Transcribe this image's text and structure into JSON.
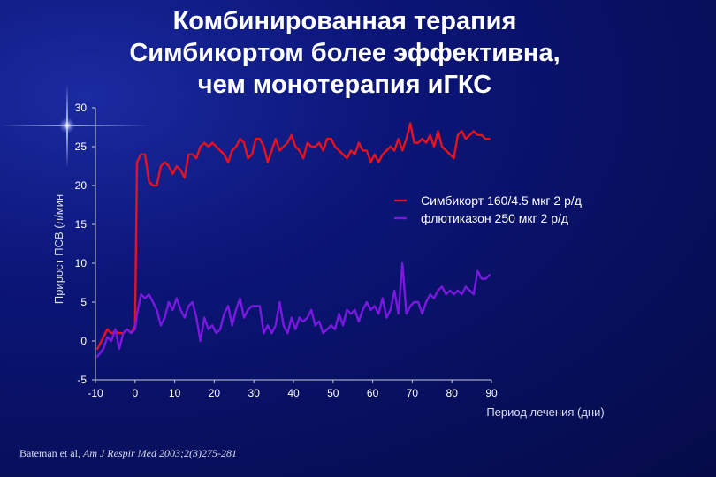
{
  "title_lines": [
    "Комбинированная терапия",
    "Симбикортом более эффективна,",
    "чем монотерапия иГКС"
  ],
  "citation": {
    "authors": "Bateman et al,",
    "journal": "Am J Respir Med 2003;2(3)275-281"
  },
  "colors": {
    "background": "#0a1470",
    "text": "#ffffff",
    "axis": "#c8ccdc"
  },
  "chart_data": {
    "type": "line",
    "title": "",
    "xlabel": "Период лечения (дни)",
    "ylabel": "Прирост ПСВ (л/мин",
    "xlim": [
      -10,
      90
    ],
    "ylim": [
      -5,
      30
    ],
    "xticks": [
      -10,
      0,
      10,
      20,
      30,
      40,
      50,
      60,
      70,
      80,
      90
    ],
    "yticks": [
      30,
      25,
      20,
      15,
      10,
      5,
      0,
      -5
    ],
    "grid": false,
    "legend_position": "right",
    "series": [
      {
        "name": "Симбикорт 160/4.5 мкг 2 р/д",
        "color": "#e8121e",
        "x": [
          -9.5,
          -8,
          -7,
          -6,
          -5,
          -4,
          -3,
          -2,
          -1,
          0,
          0.5,
          1.5,
          2.5,
          3.5,
          4.5,
          5.5,
          6.5,
          7.5,
          8.5,
          9.5,
          10.5,
          11.5,
          12.5,
          13.5,
          14.5,
          15.5,
          16.5,
          17.5,
          18.5,
          19.5,
          20.5,
          21.5,
          22.5,
          23.5,
          24.5,
          25.5,
          26.5,
          27.5,
          28.5,
          29.5,
          30.5,
          31.5,
          32.5,
          33.5,
          34.5,
          35.5,
          36.5,
          37.5,
          38.5,
          39.5,
          40.5,
          41.5,
          42.5,
          43.5,
          44.5,
          45.5,
          46.5,
          47.5,
          48.5,
          49.5,
          50.5,
          51.5,
          52.5,
          53.5,
          54.5,
          55.5,
          56.5,
          57.5,
          58.5,
          59.5,
          60.5,
          61.5,
          62.5,
          63.5,
          64.5,
          65.5,
          66.5,
          67.5,
          68.5,
          69.5,
          70.5,
          71.5,
          72.5,
          73.5,
          74.5,
          75.5,
          76.5,
          77.5,
          78.5,
          79.5,
          80.5,
          81.5,
          82.5,
          83.5,
          84.5,
          85.5,
          86.5,
          87.5,
          88.5,
          89.5
        ],
        "values": [
          -1,
          0.5,
          1.5,
          1,
          1.2,
          1,
          1,
          1.5,
          1,
          2,
          23,
          24,
          24,
          20.5,
          20,
          20,
          22.5,
          23,
          22.5,
          21.5,
          22.5,
          22,
          21,
          24,
          24,
          23.5,
          25,
          25.5,
          25,
          25.5,
          25,
          24.5,
          24,
          23,
          24.5,
          25,
          26,
          25.5,
          23.5,
          24,
          26,
          26,
          25,
          23,
          24.5,
          26,
          24.5,
          25,
          25.5,
          26.5,
          25,
          24.5,
          23.5,
          25.5,
          25,
          25,
          25.5,
          24.5,
          26,
          26,
          25,
          24.5,
          24,
          23.5,
          24.5,
          24,
          25.5,
          24.5,
          24.5,
          23,
          24,
          23,
          24,
          24.5,
          25,
          24.5,
          26,
          24.5,
          26,
          28,
          25.5,
          25.5,
          26,
          25.5,
          26.5,
          25,
          27,
          25,
          24.5,
          24,
          23.5,
          26.5,
          27,
          26,
          26.5,
          27,
          26.5,
          26.5,
          26,
          26
        ],
        "style": "solid"
      },
      {
        "name": "флютиказон 250 мкг 2 р/д",
        "color": "#7a18e0",
        "x": [
          -9.5,
          -8,
          -7,
          -6,
          -5,
          -4,
          -3,
          -2,
          -1,
          0,
          0.5,
          1.5,
          2.5,
          3.5,
          4.5,
          5.5,
          6.5,
          7.5,
          8.5,
          9.5,
          10.5,
          11.5,
          12.5,
          13.5,
          14.5,
          15.5,
          16.5,
          17.5,
          18.5,
          19.5,
          20.5,
          21.5,
          22.5,
          23.5,
          24.5,
          25.5,
          26.5,
          27.5,
          28.5,
          29.5,
          30.5,
          31.5,
          32.5,
          33.5,
          34.5,
          35.5,
          36.5,
          37.5,
          38.5,
          39.5,
          40.5,
          41.5,
          42.5,
          43.5,
          44.5,
          45.5,
          46.5,
          47.5,
          48.5,
          49.5,
          50.5,
          51.5,
          52.5,
          53.5,
          54.5,
          55.5,
          56.5,
          57.5,
          58.5,
          59.5,
          60.5,
          61.5,
          62.5,
          63.5,
          64.5,
          65.5,
          66.5,
          67.5,
          68.5,
          69.5,
          70.5,
          71.5,
          72.5,
          73.5,
          74.5,
          75.5,
          76.5,
          77.5,
          78.5,
          79.5,
          80.5,
          81.5,
          82.5,
          83.5,
          84.5,
          85.5,
          86.5,
          87.5,
          88.5,
          89.5
        ],
        "values": [
          -2,
          -1,
          0.5,
          0,
          1.5,
          -1,
          1,
          1.5,
          1,
          1.5,
          3.5,
          6,
          5.5,
          6,
          5,
          4,
          2,
          3,
          5,
          4,
          5.5,
          4,
          3,
          4.5,
          5,
          3,
          0,
          3,
          1.5,
          2,
          1,
          1.5,
          3.5,
          4.5,
          2,
          4,
          5.5,
          3,
          4,
          4.5,
          4.5,
          4.5,
          1,
          2,
          1,
          2,
          5,
          2,
          1,
          3,
          1.5,
          3,
          2.5,
          3,
          4,
          2,
          2.5,
          1,
          1.5,
          2,
          1.5,
          3.5,
          2,
          4,
          3.5,
          4,
          2.5,
          4,
          5,
          4,
          4.5,
          3.5,
          5.5,
          3,
          4,
          6.5,
          3.5,
          10,
          3.5,
          4.5,
          5,
          5,
          3.5,
          5,
          6,
          5.5,
          6.5,
          7,
          6,
          6.5,
          6,
          6.5,
          6,
          7,
          6.5,
          6,
          9,
          8,
          8,
          8.5
        ],
        "style": "solid"
      }
    ]
  }
}
